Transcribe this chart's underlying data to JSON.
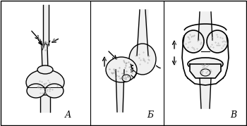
{
  "background_color": "#ffffff",
  "border_color": "#000000",
  "label_A": "А",
  "label_B": "Б",
  "label_V": "В",
  "label_fontsize": 9,
  "fig_width": 3.5,
  "fig_height": 1.79,
  "dpi": 100,
  "line_color": "#000000",
  "bone_fill": "#f0f0f0",
  "dot_color": "#999999",
  "arrow_color": "#666666"
}
